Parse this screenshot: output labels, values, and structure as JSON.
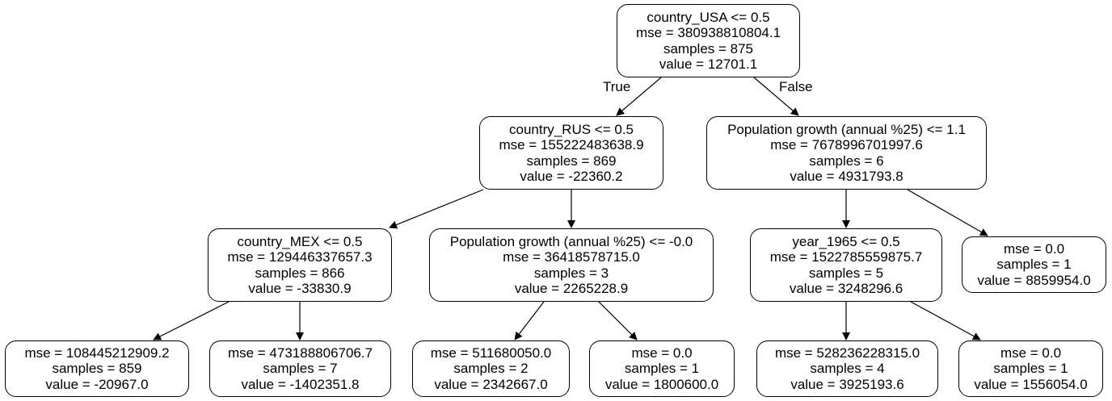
{
  "tree": {
    "edge_labels": {
      "true": "True",
      "false": "False"
    },
    "nodes": {
      "n0": {
        "split": "country_USA <= 0.5",
        "mse": "mse = 380938810804.1",
        "samples": "samples = 875",
        "value": "value = 12701.1"
      },
      "n1": {
        "split": "country_RUS <= 0.5",
        "mse": "mse = 155222483638.9",
        "samples": "samples = 869",
        "value": "value = -22360.2"
      },
      "n2": {
        "split": "Population growth (annual %25) <= 1.1",
        "mse": "mse = 7678996701997.6",
        "samples": "samples = 6",
        "value": "value = 4931793.8"
      },
      "n3": {
        "split": "country_MEX <= 0.5",
        "mse": "mse = 129446337657.3",
        "samples": "samples = 866",
        "value": "value = -33830.9"
      },
      "n4": {
        "split": "Population growth (annual %25) <= -0.0",
        "mse": "mse = 36418578715.0",
        "samples": "samples = 3",
        "value": "value = 2265228.9"
      },
      "n5": {
        "split": "year_1965 <= 0.5",
        "mse": "mse = 1522785559875.7",
        "samples": "samples = 5",
        "value": "value = 3248296.6"
      },
      "n6": {
        "mse": "mse = 0.0",
        "samples": "samples = 1",
        "value": "value = 8859954.0"
      },
      "n7": {
        "mse": "mse = 108445212909.2",
        "samples": "samples = 859",
        "value": "value = -20967.0"
      },
      "n8": {
        "mse": "mse = 473188806706.7",
        "samples": "samples = 7",
        "value": "value = -1402351.8"
      },
      "n9": {
        "mse": "mse = 511680050.0",
        "samples": "samples = 2",
        "value": "value = 2342667.0"
      },
      "n10": {
        "mse": "mse = 0.0",
        "samples": "samples = 1",
        "value": "value = 1800600.0"
      },
      "n11": {
        "mse": "mse = 528236228315.0",
        "samples": "samples = 4",
        "value": "value = 3925193.6"
      },
      "n12": {
        "mse": "mse = 0.0",
        "samples": "samples = 1",
        "value": "value = 1556054.0"
      }
    }
  }
}
